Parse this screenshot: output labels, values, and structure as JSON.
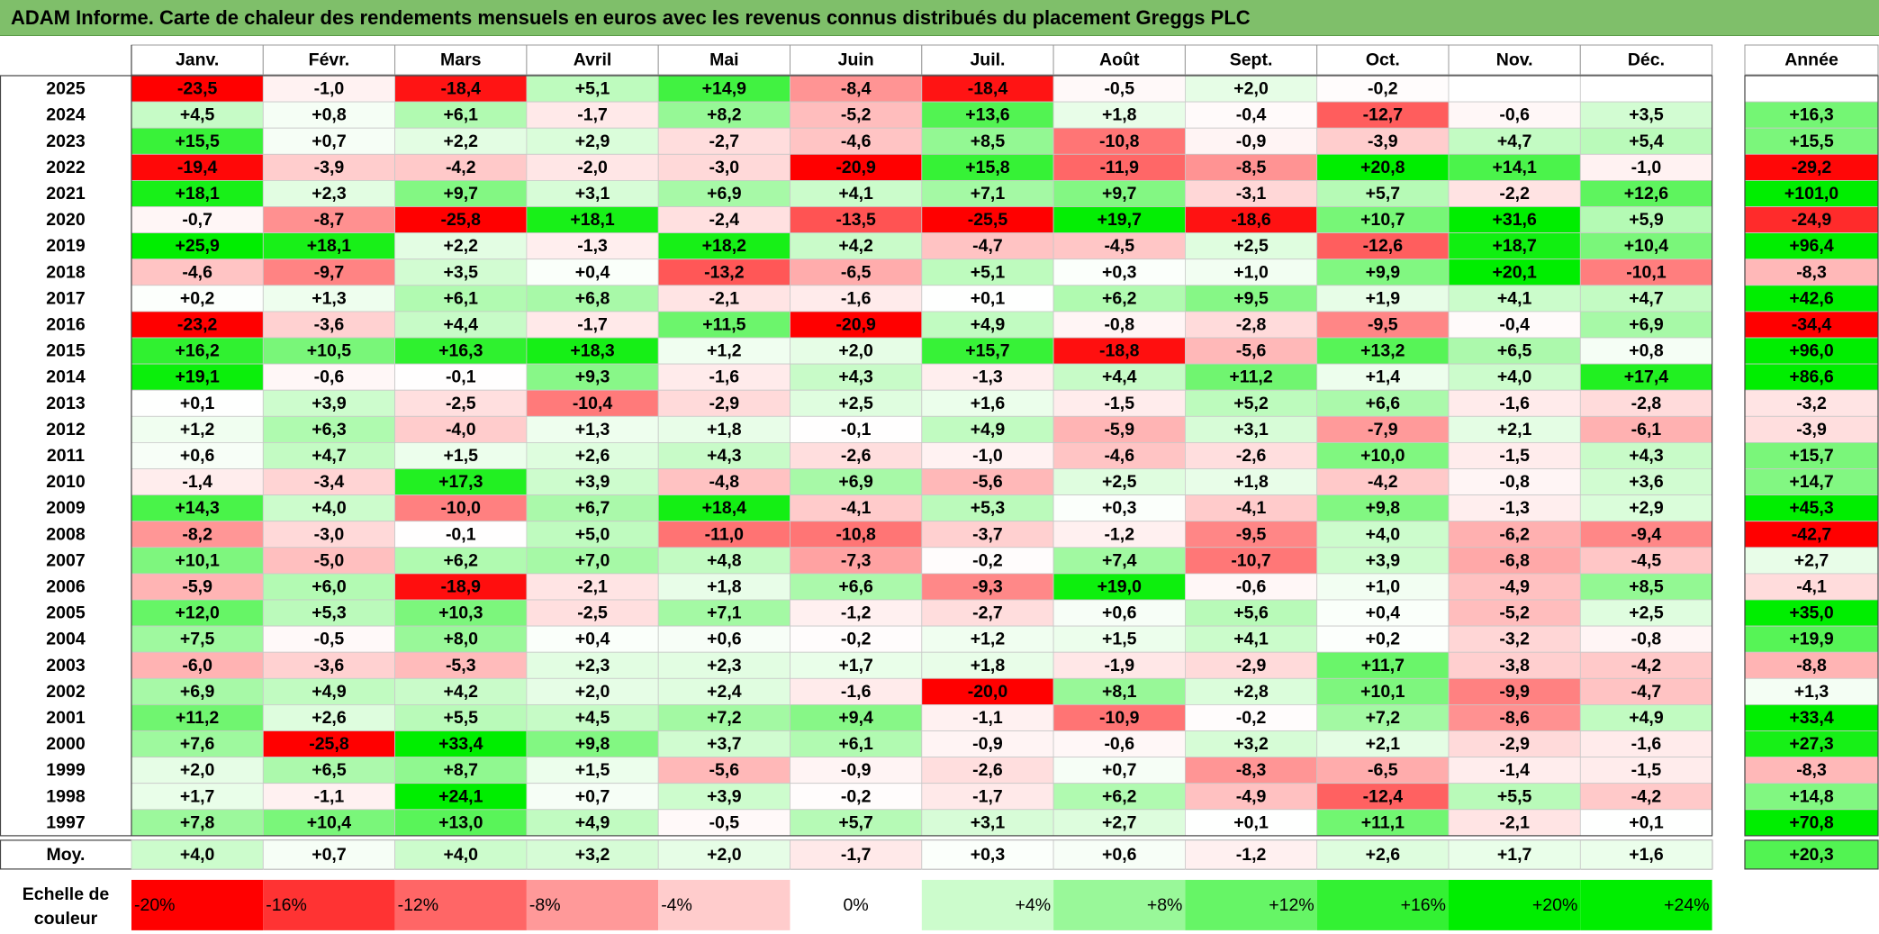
{
  "title": "ADAM Informe. Carte de chaleur des rendements mensuels en euros avec les revenus connus distribués du placement Greggs PLC",
  "chart_data": {
    "type": "heatmap",
    "title": "ADAM Informe. Carte de chaleur des rendements mensuels en euros avec les revenus connus distribués du placement Greggs PLC",
    "months": [
      "Janv.",
      "Févr.",
      "Mars",
      "Avril",
      "Mai",
      "Juin",
      "Juil.",
      "Août",
      "Sept.",
      "Oct.",
      "Nov.",
      "Déc."
    ],
    "year_header": "Année",
    "rows": [
      {
        "year": "2025",
        "values": [
          "-23,5",
          "-1,0",
          "-18,4",
          "+5,1",
          "+14,9",
          "-8,4",
          "-18,4",
          "-0,5",
          "+2,0",
          "-0,2",
          "",
          ""
        ],
        "annual": ""
      },
      {
        "year": "2024",
        "values": [
          "+4,5",
          "+0,8",
          "+6,1",
          "-1,7",
          "+8,2",
          "-5,2",
          "+13,6",
          "+1,8",
          "-0,4",
          "-12,7",
          "-0,6",
          "+3,5"
        ],
        "annual": "+16,3"
      },
      {
        "year": "2023",
        "values": [
          "+15,5",
          "+0,7",
          "+2,2",
          "+2,9",
          "-2,7",
          "-4,6",
          "+8,5",
          "-10,8",
          "-0,9",
          "-3,9",
          "+4,7",
          "+5,4"
        ],
        "annual": "+15,5"
      },
      {
        "year": "2022",
        "values": [
          "-19,4",
          "-3,9",
          "-4,2",
          "-2,0",
          "-3,0",
          "-20,9",
          "+15,8",
          "-11,9",
          "-8,5",
          "+20,8",
          "+14,1",
          "-1,0"
        ],
        "annual": "-29,2"
      },
      {
        "year": "2021",
        "values": [
          "+18,1",
          "+2,3",
          "+9,7",
          "+3,1",
          "+6,9",
          "+4,1",
          "+7,1",
          "+9,7",
          "-3,1",
          "+5,7",
          "-2,2",
          "+12,6"
        ],
        "annual": "+101,0"
      },
      {
        "year": "2020",
        "values": [
          "-0,7",
          "-8,7",
          "-25,8",
          "+18,1",
          "-2,4",
          "-13,5",
          "-25,5",
          "+19,7",
          "-18,6",
          "+10,7",
          "+31,6",
          "+5,9"
        ],
        "annual": "-24,9"
      },
      {
        "year": "2019",
        "values": [
          "+25,9",
          "+18,1",
          "+2,2",
          "-1,3",
          "+18,2",
          "+4,2",
          "-4,7",
          "-4,5",
          "+2,5",
          "-12,6",
          "+18,7",
          "+10,4"
        ],
        "annual": "+96,4"
      },
      {
        "year": "2018",
        "values": [
          "-4,6",
          "-9,7",
          "+3,5",
          "+0,4",
          "-13,2",
          "-6,5",
          "+5,1",
          "+0,3",
          "+1,0",
          "+9,9",
          "+20,1",
          "-10,1"
        ],
        "annual": "-8,3"
      },
      {
        "year": "2017",
        "values": [
          "+0,2",
          "+1,3",
          "+6,1",
          "+6,8",
          "-2,1",
          "-1,6",
          "+0,1",
          "+6,2",
          "+9,5",
          "+1,9",
          "+4,1",
          "+4,7"
        ],
        "annual": "+42,6"
      },
      {
        "year": "2016",
        "values": [
          "-23,2",
          "-3,6",
          "+4,4",
          "-1,7",
          "+11,5",
          "-20,9",
          "+4,9",
          "-0,8",
          "-2,8",
          "-9,5",
          "-0,4",
          "+6,9"
        ],
        "annual": "-34,4"
      },
      {
        "year": "2015",
        "values": [
          "+16,2",
          "+10,5",
          "+16,3",
          "+18,3",
          "+1,2",
          "+2,0",
          "+15,7",
          "-18,8",
          "-5,6",
          "+13,2",
          "+6,5",
          "+0,8"
        ],
        "annual": "+96,0"
      },
      {
        "year": "2014",
        "values": [
          "+19,1",
          "-0,6",
          "-0,1",
          "+9,3",
          "-1,6",
          "+4,3",
          "-1,3",
          "+4,4",
          "+11,2",
          "+1,4",
          "+4,0",
          "+17,4"
        ],
        "annual": "+86,6"
      },
      {
        "year": "2013",
        "values": [
          "+0,1",
          "+3,9",
          "-2,5",
          "-10,4",
          "-2,9",
          "+2,5",
          "+1,6",
          "-1,5",
          "+5,2",
          "+6,6",
          "-1,6",
          "-2,8"
        ],
        "annual": "-3,2"
      },
      {
        "year": "2012",
        "values": [
          "+1,2",
          "+6,3",
          "-4,0",
          "+1,3",
          "+1,8",
          "-0,1",
          "+4,9",
          "-5,9",
          "+3,1",
          "-7,9",
          "+2,1",
          "-6,1"
        ],
        "annual": "-3,9"
      },
      {
        "year": "2011",
        "values": [
          "+0,6",
          "+4,7",
          "+1,5",
          "+2,6",
          "+4,3",
          "-2,6",
          "-1,0",
          "-4,6",
          "-2,6",
          "+10,0",
          "-1,5",
          "+4,3"
        ],
        "annual": "+15,7"
      },
      {
        "year": "2010",
        "values": [
          "-1,4",
          "-3,4",
          "+17,3",
          "+3,9",
          "-4,8",
          "+6,9",
          "-5,6",
          "+2,5",
          "+1,8",
          "-4,2",
          "-0,8",
          "+3,6"
        ],
        "annual": "+14,7"
      },
      {
        "year": "2009",
        "values": [
          "+14,3",
          "+4,0",
          "-10,0",
          "+6,7",
          "+18,4",
          "-4,1",
          "+5,3",
          "+0,3",
          "-4,1",
          "+9,8",
          "-1,3",
          "+2,9"
        ],
        "annual": "+45,3"
      },
      {
        "year": "2008",
        "values": [
          "-8,2",
          "-3,0",
          "-0,1",
          "+5,0",
          "-11,0",
          "-10,8",
          "-3,7",
          "-1,2",
          "-9,5",
          "+4,0",
          "-6,2",
          "-9,4"
        ],
        "annual": "-42,7"
      },
      {
        "year": "2007",
        "values": [
          "+10,1",
          "-5,0",
          "+6,2",
          "+7,0",
          "+4,8",
          "-7,3",
          "-0,2",
          "+7,4",
          "-10,7",
          "+3,9",
          "-6,8",
          "-4,5"
        ],
        "annual": "+2,7"
      },
      {
        "year": "2006",
        "values": [
          "-5,9",
          "+6,0",
          "-18,9",
          "-2,1",
          "+1,8",
          "+6,6",
          "-9,3",
          "+19,0",
          "-0,6",
          "+1,0",
          "-4,9",
          "+8,5"
        ],
        "annual": "-4,1"
      },
      {
        "year": "2005",
        "values": [
          "+12,0",
          "+5,3",
          "+10,3",
          "-2,5",
          "+7,1",
          "-1,2",
          "-2,7",
          "+0,6",
          "+5,6",
          "+0,4",
          "-5,2",
          "+2,5"
        ],
        "annual": "+35,0"
      },
      {
        "year": "2004",
        "values": [
          "+7,5",
          "-0,5",
          "+8,0",
          "+0,4",
          "+0,6",
          "-0,2",
          "+1,2",
          "+1,5",
          "+4,1",
          "+0,2",
          "-3,2",
          "-0,8"
        ],
        "annual": "+19,9"
      },
      {
        "year": "2003",
        "values": [
          "-6,0",
          "-3,6",
          "-5,3",
          "+2,3",
          "+2,3",
          "+1,7",
          "+1,8",
          "-1,9",
          "-2,9",
          "+11,7",
          "-3,8",
          "-4,2"
        ],
        "annual": "-8,8"
      },
      {
        "year": "2002",
        "values": [
          "+6,9",
          "+4,9",
          "+4,2",
          "+2,0",
          "+2,4",
          "-1,6",
          "-20,0",
          "+8,1",
          "+2,8",
          "+10,1",
          "-9,9",
          "-4,7"
        ],
        "annual": "+1,3"
      },
      {
        "year": "2001",
        "values": [
          "+11,2",
          "+2,6",
          "+5,5",
          "+4,5",
          "+7,2",
          "+9,4",
          "-1,1",
          "-10,9",
          "-0,2",
          "+7,2",
          "-8,6",
          "+4,9"
        ],
        "annual": "+33,4"
      },
      {
        "year": "2000",
        "values": [
          "+7,6",
          "-25,8",
          "+33,4",
          "+9,8",
          "+3,7",
          "+6,1",
          "-0,9",
          "-0,6",
          "+3,2",
          "+2,1",
          "-2,9",
          "-1,6"
        ],
        "annual": "+27,3"
      },
      {
        "year": "1999",
        "values": [
          "+2,0",
          "+6,5",
          "+8,7",
          "+1,5",
          "-5,6",
          "-0,9",
          "-2,6",
          "+0,7",
          "-8,3",
          "-6,5",
          "-1,4",
          "-1,5"
        ],
        "annual": "-8,3"
      },
      {
        "year": "1998",
        "values": [
          "+1,7",
          "-1,1",
          "+24,1",
          "+0,7",
          "+3,9",
          "-0,2",
          "-1,7",
          "+6,2",
          "-4,9",
          "-12,4",
          "+5,5",
          "-4,2"
        ],
        "annual": "+14,8"
      },
      {
        "year": "1997",
        "values": [
          "+7,8",
          "+10,4",
          "+13,0",
          "+4,9",
          "-0,5",
          "+5,7",
          "+3,1",
          "+2,7",
          "+0,1",
          "+11,1",
          "-2,1",
          "+0,1"
        ],
        "annual": "+70,8"
      }
    ],
    "average": {
      "label": "Moy.",
      "values": [
        "+4,0",
        "+0,7",
        "+4,0",
        "+3,2",
        "+2,0",
        "-1,7",
        "+0,3",
        "+0,6",
        "-1,2",
        "+2,6",
        "+1,7",
        "+1,6"
      ],
      "annual": "+20,3"
    },
    "scale": {
      "label_line1": "Echelle de",
      "label_line2": "couleur",
      "steps": [
        {
          "label": "-20%",
          "value": -20
        },
        {
          "label": "-16%",
          "value": -16
        },
        {
          "label": "-12%",
          "value": -12
        },
        {
          "label": "-8%",
          "value": -8
        },
        {
          "label": "-4%",
          "value": -4
        },
        {
          "label": "0%",
          "value": 0
        },
        {
          "label": "+4%",
          "value": 4
        },
        {
          "label": "+8%",
          "value": 8
        },
        {
          "label": "+12%",
          "value": 12
        },
        {
          "label": "+16%",
          "value": 16
        },
        {
          "label": "+20%",
          "value": 20
        },
        {
          "label": "+24%",
          "value": 24
        }
      ]
    },
    "colors": {
      "negative": "#ff0000",
      "zero": "#ffffff",
      "positive": "#00ee00",
      "title_bar": "#7fbf6a"
    }
  }
}
